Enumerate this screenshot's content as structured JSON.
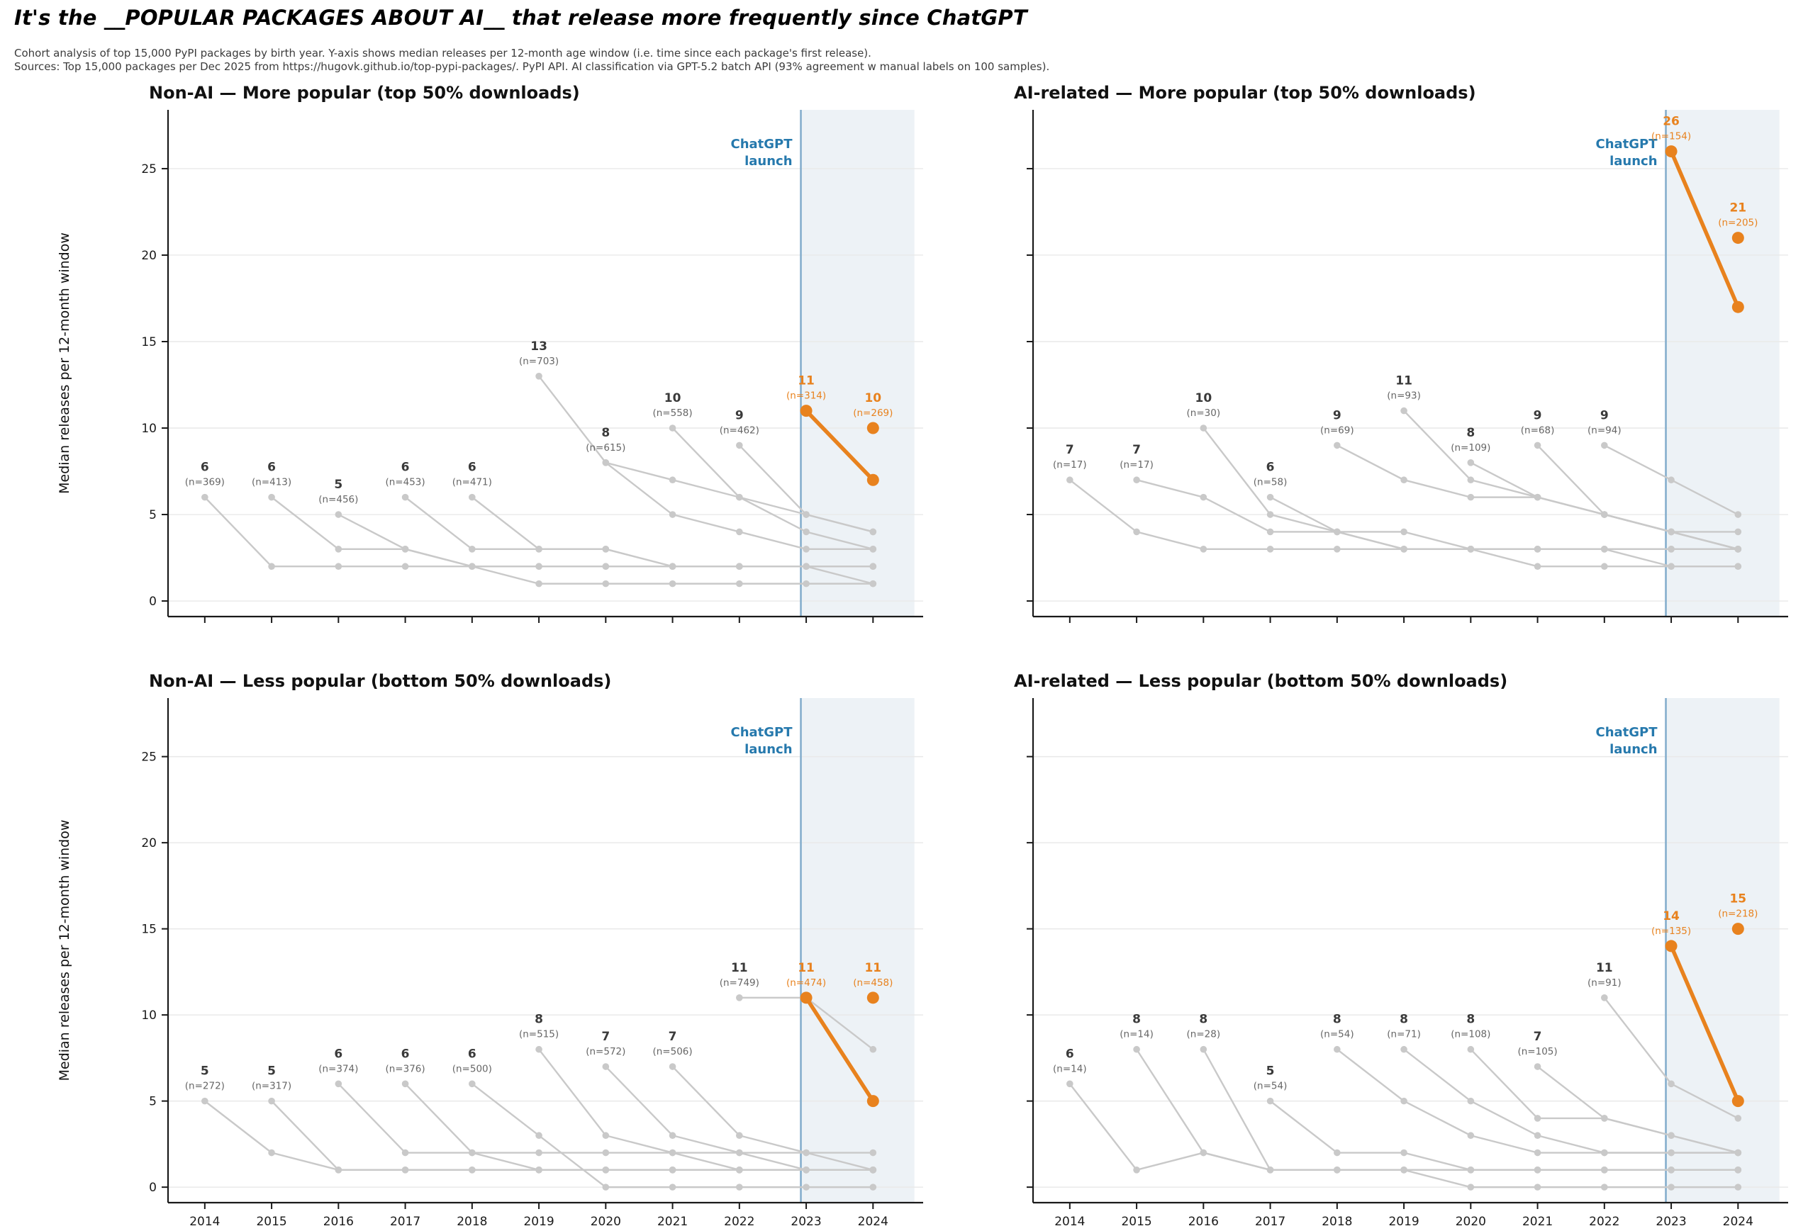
{
  "header": {
    "title": "It's the __POPULAR PACKAGES ABOUT AI__ that release more frequently since ChatGPT",
    "subtitle_line1": "Cohort analysis of top 15,000 PyPI packages by birth year. Y-axis shows median releases per 12-month age window (i.e. time since each package's first release).",
    "subtitle_line2": "Sources: Top 15,000 packages per Dec 2025 from https://hugovk.github.io/top-pypi-packages/. PyPI API. AI classification via GPT-5.2 batch API (93% agreement w manual labels on 100 samples)."
  },
  "chart_data": {
    "type": "line",
    "ylabel": "Median releases per 12-month window",
    "yticks": [
      0,
      5,
      10,
      15,
      20,
      25
    ],
    "ylim": [
      -0.9,
      28.4
    ],
    "xticks": [
      2014,
      2015,
      2016,
      2017,
      2018,
      2019,
      2020,
      2021,
      2022,
      2023,
      2024
    ],
    "xlim": [
      2013.45,
      2024.75
    ],
    "grid": "horizontal",
    "annotations": {
      "launch_label_line1": "ChatGPT",
      "launch_label_line2": "launch",
      "launch_x": 2022.92,
      "band_end_x": 2024.62
    },
    "colors": {
      "cohort_line": "#c9c9c9",
      "highlight": "#e8821e",
      "launch_line": "#85aecd",
      "launch_text": "#2679ad",
      "band": "#edf2f6",
      "grid": "#e9e9e9",
      "spine": "#1a1a1a",
      "value_label": "#3a3a3a",
      "n_label": "#666666"
    },
    "panels": [
      {
        "title": "Non-AI — More popular (top 50% downloads)",
        "position": "top-left",
        "show_y_labels": true,
        "show_x_labels": false,
        "cohorts": [
          {
            "birth_year": 2014,
            "start_value": 6,
            "n": 369,
            "highlight": false,
            "values": [
              6,
              2,
              2,
              2,
              2,
              2,
              2,
              2,
              2,
              2,
              2
            ]
          },
          {
            "birth_year": 2015,
            "start_value": 6,
            "n": 413,
            "highlight": false,
            "values": [
              6,
              3,
              3,
              2,
              2,
              2,
              2,
              2,
              2,
              2
            ]
          },
          {
            "birth_year": 2016,
            "start_value": 5,
            "n": 456,
            "highlight": false,
            "values": [
              5,
              3,
              2,
              1,
              1,
              1,
              1,
              1,
              1
            ]
          },
          {
            "birth_year": 2017,
            "start_value": 6,
            "n": 453,
            "highlight": false,
            "values": [
              6,
              3,
              3,
              3,
              2,
              2,
              2,
              2
            ]
          },
          {
            "birth_year": 2018,
            "start_value": 6,
            "n": 471,
            "highlight": false,
            "values": [
              6,
              3,
              3,
              2,
              2,
              2,
              1
            ]
          },
          {
            "birth_year": 2019,
            "start_value": 13,
            "n": 703,
            "highlight": false,
            "values": [
              13,
              8,
              7,
              6,
              5,
              4
            ]
          },
          {
            "birth_year": 2020,
            "start_value": 8,
            "n": 615,
            "highlight": false,
            "values": [
              8,
              5,
              4,
              3,
              3
            ]
          },
          {
            "birth_year": 2021,
            "start_value": 10,
            "n": 558,
            "highlight": false,
            "values": [
              10,
              6,
              4,
              3
            ]
          },
          {
            "birth_year": 2022,
            "start_value": 9,
            "n": 462,
            "highlight": false,
            "values": [
              9,
              5,
              4
            ]
          },
          {
            "birth_year": 2023,
            "start_value": 11,
            "n": 314,
            "highlight": true,
            "values": [
              11,
              7
            ]
          },
          {
            "birth_year": 2024,
            "start_value": 10,
            "n": 269,
            "highlight": true,
            "values": [
              10
            ]
          }
        ]
      },
      {
        "title": "AI-related — More popular (top 50% downloads)",
        "position": "top-right",
        "show_y_labels": false,
        "show_x_labels": false,
        "cohorts": [
          {
            "birth_year": 2014,
            "start_value": 7,
            "n": 17,
            "highlight": false,
            "values": [
              7,
              4,
              3,
              3,
              3,
              3,
              3,
              3,
              3,
              3,
              3
            ]
          },
          {
            "birth_year": 2015,
            "start_value": 7,
            "n": 17,
            "highlight": false,
            "values": [
              7,
              6,
              4,
              4,
              4,
              3,
              3,
              3,
              3,
              3
            ]
          },
          {
            "birth_year": 2016,
            "start_value": 10,
            "n": 30,
            "highlight": false,
            "values": [
              10,
              5,
              4,
              3,
              3,
              2,
              2,
              2,
              2
            ]
          },
          {
            "birth_year": 2017,
            "start_value": 6,
            "n": 58,
            "highlight": false,
            "values": [
              6,
              4,
              3,
              3,
              3,
              3,
              2,
              2
            ]
          },
          {
            "birth_year": 2018,
            "start_value": 9,
            "n": 69,
            "highlight": false,
            "values": [
              9,
              7,
              6,
              6,
              5,
              4,
              4
            ]
          },
          {
            "birth_year": 2019,
            "start_value": 11,
            "n": 93,
            "highlight": false,
            "values": [
              11,
              7,
              6,
              5,
              4,
              3
            ]
          },
          {
            "birth_year": 2020,
            "start_value": 8,
            "n": 109,
            "highlight": false,
            "values": [
              8,
              6,
              5,
              4,
              3
            ]
          },
          {
            "birth_year": 2021,
            "start_value": 9,
            "n": 68,
            "highlight": false,
            "values": [
              9,
              5,
              4,
              3
            ]
          },
          {
            "birth_year": 2022,
            "start_value": 9,
            "n": 94,
            "highlight": false,
            "values": [
              9,
              7,
              5
            ]
          },
          {
            "birth_year": 2023,
            "start_value": 26,
            "n": 154,
            "highlight": true,
            "values": [
              26,
              17
            ]
          },
          {
            "birth_year": 2024,
            "start_value": 21,
            "n": 205,
            "highlight": true,
            "values": [
              21
            ]
          }
        ]
      },
      {
        "title": "Non-AI — Less popular (bottom 50% downloads)",
        "position": "bottom-left",
        "show_y_labels": true,
        "show_x_labels": true,
        "cohorts": [
          {
            "birth_year": 2014,
            "start_value": 5,
            "n": 272,
            "highlight": false,
            "values": [
              5,
              2,
              1,
              1,
              1,
              1,
              1,
              1,
              1,
              1,
              1
            ]
          },
          {
            "birth_year": 2015,
            "start_value": 5,
            "n": 317,
            "highlight": false,
            "values": [
              5,
              1,
              1,
              1,
              1,
              1,
              1,
              1,
              1,
              1
            ]
          },
          {
            "birth_year": 2016,
            "start_value": 6,
            "n": 374,
            "highlight": false,
            "values": [
              6,
              2,
              2,
              2,
              2,
              2,
              2,
              2,
              2
            ]
          },
          {
            "birth_year": 2017,
            "start_value": 6,
            "n": 376,
            "highlight": false,
            "values": [
              6,
              2,
              1,
              1,
              1,
              1,
              1,
              1
            ]
          },
          {
            "birth_year": 2018,
            "start_value": 6,
            "n": 500,
            "highlight": false,
            "values": [
              6,
              3,
              0,
              0,
              0,
              0,
              0
            ]
          },
          {
            "birth_year": 2019,
            "start_value": 8,
            "n": 515,
            "highlight": false,
            "values": [
              8,
              3,
              2,
              1,
              1,
              1
            ]
          },
          {
            "birth_year": 2020,
            "start_value": 7,
            "n": 572,
            "highlight": false,
            "values": [
              7,
              3,
              2,
              1,
              1
            ]
          },
          {
            "birth_year": 2021,
            "start_value": 7,
            "n": 506,
            "highlight": false,
            "values": [
              7,
              3,
              2,
              1
            ]
          },
          {
            "birth_year": 2022,
            "start_value": 11,
            "n": 749,
            "highlight": false,
            "values": [
              11,
              11,
              8
            ]
          },
          {
            "birth_year": 2023,
            "start_value": 11,
            "n": 474,
            "highlight": true,
            "values": [
              11,
              5
            ]
          },
          {
            "birth_year": 2024,
            "start_value": 11,
            "n": 458,
            "highlight": true,
            "values": [
              11
            ]
          }
        ]
      },
      {
        "title": "AI-related — Less popular (bottom 50% downloads)",
        "position": "bottom-right",
        "show_y_labels": false,
        "show_x_labels": true,
        "cohorts": [
          {
            "birth_year": 2014,
            "start_value": 6,
            "n": 14,
            "highlight": false,
            "values": [
              6,
              1,
              2,
              1,
              1,
              1,
              1,
              1,
              1,
              1,
              1
            ]
          },
          {
            "birth_year": 2015,
            "start_value": 8,
            "n": 14,
            "highlight": false,
            "values": [
              8,
              2,
              1,
              1,
              1,
              1,
              1,
              1,
              1,
              1
            ]
          },
          {
            "birth_year": 2016,
            "start_value": 8,
            "n": 28,
            "highlight": false,
            "values": [
              8,
              1,
              1,
              1,
              0,
              0,
              0,
              0,
              0
            ]
          },
          {
            "birth_year": 2017,
            "start_value": 5,
            "n": 54,
            "highlight": false,
            "values": [
              5,
              2,
              2,
              1,
              1,
              1,
              1,
              1
            ]
          },
          {
            "birth_year": 2018,
            "start_value": 8,
            "n": 54,
            "highlight": false,
            "values": [
              8,
              5,
              3,
              2,
              2,
              2,
              2
            ]
          },
          {
            "birth_year": 2019,
            "start_value": 8,
            "n": 71,
            "highlight": false,
            "values": [
              8,
              5,
              3,
              2,
              2,
              2
            ]
          },
          {
            "birth_year": 2020,
            "start_value": 8,
            "n": 108,
            "highlight": false,
            "values": [
              8,
              4,
              4,
              3,
              2
            ]
          },
          {
            "birth_year": 2021,
            "start_value": 7,
            "n": 105,
            "highlight": false,
            "values": [
              7,
              4,
              3,
              2
            ]
          },
          {
            "birth_year": 2022,
            "start_value": 11,
            "n": 91,
            "highlight": false,
            "values": [
              11,
              6,
              4
            ]
          },
          {
            "birth_year": 2023,
            "start_value": 14,
            "n": 135,
            "highlight": true,
            "values": [
              14,
              5
            ]
          },
          {
            "birth_year": 2024,
            "start_value": 15,
            "n": 218,
            "highlight": true,
            "values": [
              15
            ]
          }
        ]
      }
    ]
  }
}
